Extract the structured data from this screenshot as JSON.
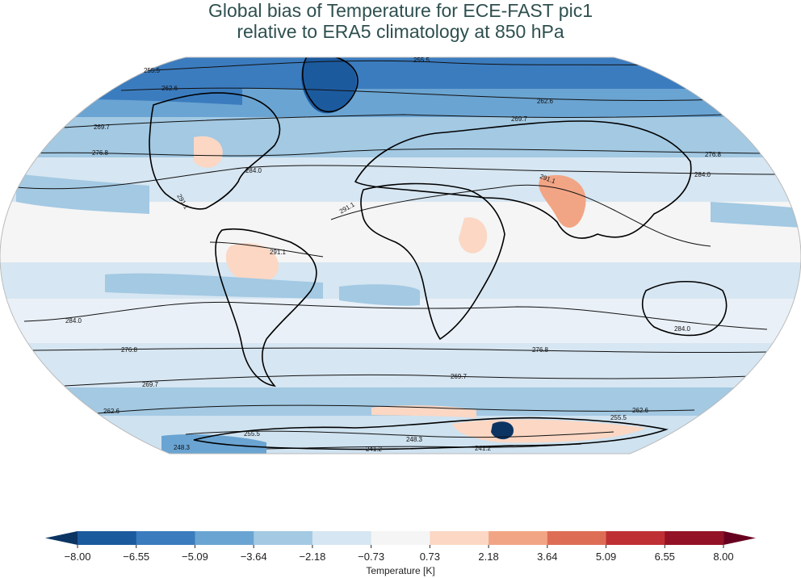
{
  "title": {
    "line1": "Global bias of Temperature for ECE-FAST pic1",
    "line2": "relative to ERA5 climatology at 850 hPa"
  },
  "colorbar": {
    "label": "Temperature [K]",
    "ticks": [
      "−8.00",
      "−6.55",
      "−5.09",
      "−3.64",
      "−2.18",
      "−0.73",
      "0.73",
      "2.18",
      "3.64",
      "5.09",
      "6.55",
      "8.00"
    ],
    "colors": [
      "#1c5a9e",
      "#3b7cbf",
      "#6aa4d2",
      "#a3c9e3",
      "#d6e6f2",
      "#f5f5f5",
      "#fbd7c4",
      "#f2a584",
      "#de6d55",
      "#bf3035",
      "#941226"
    ],
    "extend_low_color": "#0b3463",
    "extend_high_color": "#67001f"
  },
  "map": {
    "projection": "Robinson",
    "contour_labels": [
      {
        "text": "255.5"
      },
      {
        "text": "255.5"
      },
      {
        "text": "262.6"
      },
      {
        "text": "262.6"
      },
      {
        "text": "269.7"
      },
      {
        "text": "269.7"
      },
      {
        "text": "276.8"
      },
      {
        "text": "276.8"
      },
      {
        "text": "284.0"
      },
      {
        "text": "284.0"
      },
      {
        "text": "291.1"
      },
      {
        "text": "291.1"
      },
      {
        "text": "291.1"
      },
      {
        "text": "291.1"
      },
      {
        "text": "284.0"
      },
      {
        "text": "284.0"
      },
      {
        "text": "276.8"
      },
      {
        "text": "276.8"
      },
      {
        "text": "269.7"
      },
      {
        "text": "269.7"
      },
      {
        "text": "262.6"
      },
      {
        "text": "262.6"
      },
      {
        "text": "255.5"
      },
      {
        "text": "255.5"
      },
      {
        "text": "248.3"
      },
      {
        "text": "248.3"
      },
      {
        "text": "241.2"
      },
      {
        "text": "241.2"
      }
    ]
  }
}
